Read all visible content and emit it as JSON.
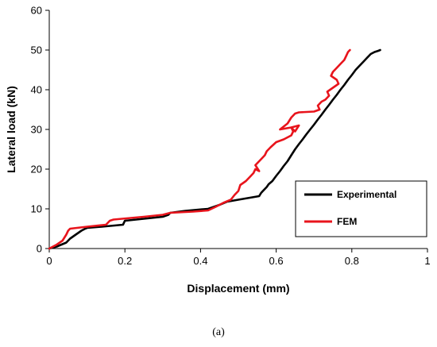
{
  "chart_data": {
    "type": "line",
    "xlabel": "Displacement (mm)",
    "ylabel": "Lateral load (kN)",
    "xlim": [
      0,
      1
    ],
    "ylim": [
      0,
      60
    ],
    "xticks": [
      "0",
      "0.2",
      "0.4",
      "0.6",
      "0.8",
      "1"
    ],
    "yticks": [
      "0",
      "10",
      "20",
      "30",
      "40",
      "50",
      "60"
    ],
    "grid": false,
    "legend_position": "right-middle",
    "series": [
      {
        "name": "Experimental",
        "color": "#000000",
        "x": [
          0,
          0.02,
          0.045,
          0.055,
          0.07,
          0.085,
          0.095,
          0.1,
          0.15,
          0.195,
          0.2,
          0.25,
          0.3,
          0.315,
          0.32,
          0.36,
          0.42,
          0.435,
          0.45,
          0.47,
          0.5,
          0.555,
          0.56,
          0.565,
          0.575,
          0.58,
          0.59,
          0.6,
          0.61,
          0.62,
          0.63,
          0.64,
          0.65,
          0.66,
          0.67,
          0.68,
          0.69,
          0.7,
          0.71,
          0.72,
          0.73,
          0.74,
          0.75,
          0.76,
          0.77,
          0.78,
          0.79,
          0.8,
          0.81,
          0.82,
          0.83,
          0.84,
          0.85,
          0.86,
          0.87,
          0.875
        ],
        "y": [
          0,
          0.5,
          1.5,
          2.5,
          3.5,
          4.5,
          5,
          5.2,
          5.6,
          6,
          7,
          7.5,
          8,
          8.5,
          9,
          9.5,
          10,
          10.5,
          11,
          11.8,
          12.3,
          13.2,
          14,
          14.5,
          15.5,
          16.2,
          17,
          18.3,
          19.5,
          20.8,
          22,
          23.5,
          25,
          26.3,
          27.5,
          28.8,
          30,
          31.2,
          32.5,
          33.7,
          35,
          36.2,
          37.5,
          38.7,
          40,
          41.2,
          42.5,
          43.7,
          45,
          46,
          47,
          48,
          49,
          49.5,
          49.8,
          50
        ]
      },
      {
        "name": "FEM",
        "color": "#e8141c",
        "x": [
          0,
          0.02,
          0.035,
          0.045,
          0.05,
          0.055,
          0.1,
          0.15,
          0.16,
          0.17,
          0.25,
          0.3,
          0.32,
          0.38,
          0.42,
          0.44,
          0.46,
          0.48,
          0.49,
          0.5,
          0.505,
          0.52,
          0.53,
          0.54,
          0.545,
          0.555,
          0.545,
          0.56,
          0.57,
          0.575,
          0.585,
          0.6,
          0.62,
          0.64,
          0.645,
          0.64,
          0.65,
          0.66,
          0.64,
          0.61,
          0.63,
          0.64,
          0.65,
          0.66,
          0.7,
          0.715,
          0.71,
          0.72,
          0.73,
          0.74,
          0.735,
          0.75,
          0.765,
          0.76,
          0.745,
          0.75,
          0.76,
          0.77,
          0.78,
          0.785,
          0.79,
          0.795
        ],
        "y": [
          0,
          1,
          2,
          3.5,
          4.5,
          5,
          5.5,
          6,
          7,
          7.3,
          8,
          8.5,
          9,
          9.3,
          9.6,
          10.5,
          11.5,
          12.3,
          13.5,
          14.5,
          16,
          17,
          18,
          19,
          20,
          19.5,
          21,
          22.5,
          23.5,
          24.5,
          25.5,
          26.8,
          27.5,
          28.5,
          29.5,
          30.5,
          29.5,
          31,
          30.5,
          30,
          31.5,
          33,
          34,
          34.3,
          34.5,
          35,
          36,
          37,
          37.5,
          38.5,
          39.5,
          40.5,
          41.5,
          42.5,
          43.5,
          44.5,
          45.5,
          46.5,
          47.5,
          48.5,
          49.5,
          50
        ]
      }
    ]
  },
  "caption": "(a)"
}
